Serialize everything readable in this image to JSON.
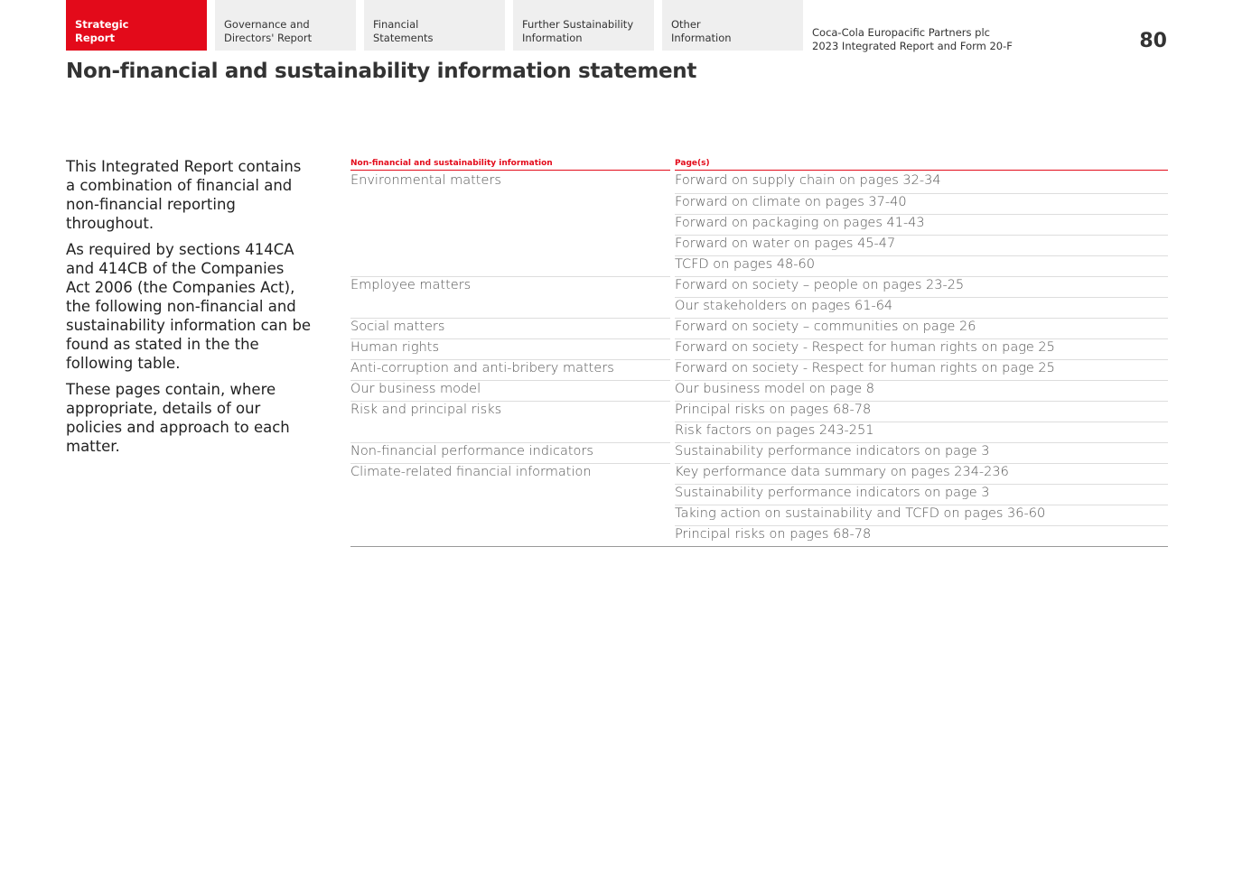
{
  "nav": {
    "tabs": [
      {
        "label": "Strategic\nReport",
        "active": true
      },
      {
        "label": "Governance and\nDirectors' Report"
      },
      {
        "label": "Financial\nStatements"
      },
      {
        "label": "Further Sustainability\nInformation"
      },
      {
        "label": "Other\nInformation"
      }
    ]
  },
  "header": {
    "company": "Coca-Cola Europacific Partners plc\n2023 Integrated Report and Form 20-F",
    "page_number": "80"
  },
  "title": "Non-financial and sustainability information statement",
  "intro": [
    "This Integrated Report contains a combination of financial and non-financial reporting throughout.",
    "As required by sections 414CA and 414CB of the Companies Act 2006 (the Companies Act), the following non-financial and sustainability information can be found as stated in the the following table.",
    "These pages contain, where appropriate, details of our policies and approach to each matter."
  ],
  "table": {
    "headers": [
      "Non-financial and sustainability information",
      "Page(s)"
    ],
    "groups": [
      {
        "label": "Environmental matters",
        "pages": [
          "Forward on supply chain on pages 32-34",
          "Forward on climate on pages 37-40",
          "Forward on packaging on pages 41-43",
          "Forward on water on pages 45-47",
          "TCFD on pages 48-60"
        ]
      },
      {
        "label": "Employee matters",
        "pages": [
          "Forward on society – people on pages 23-25",
          "Our stakeholders on pages 61-64"
        ]
      },
      {
        "label": "Social matters",
        "pages": [
          "Forward on society – communities on page 26"
        ]
      },
      {
        "label": "Human rights",
        "pages": [
          "Forward on society - Respect for human rights on page 25"
        ]
      },
      {
        "label": "Anti-corruption and anti-bribery matters",
        "pages": [
          "Forward on society - Respect for human rights on page 25"
        ]
      },
      {
        "label": "Our business model",
        "pages": [
          "Our business model on page 8"
        ]
      },
      {
        "label": "Risk and principal risks",
        "pages": [
          "Principal risks on pages 68-78",
          "Risk factors on pages 243-251"
        ]
      },
      {
        "label": "Non-financial performance indicators",
        "pages": [
          "Sustainability performance indicators on page 3"
        ]
      },
      {
        "label": "Climate-related financial information",
        "pages": [
          "Key performance data summary on pages 234-236",
          "Sustainability performance indicators on page 3",
          "Taking action on sustainability and TCFD on pages 36-60",
          "Principal risks on pages 68-78"
        ]
      }
    ]
  }
}
